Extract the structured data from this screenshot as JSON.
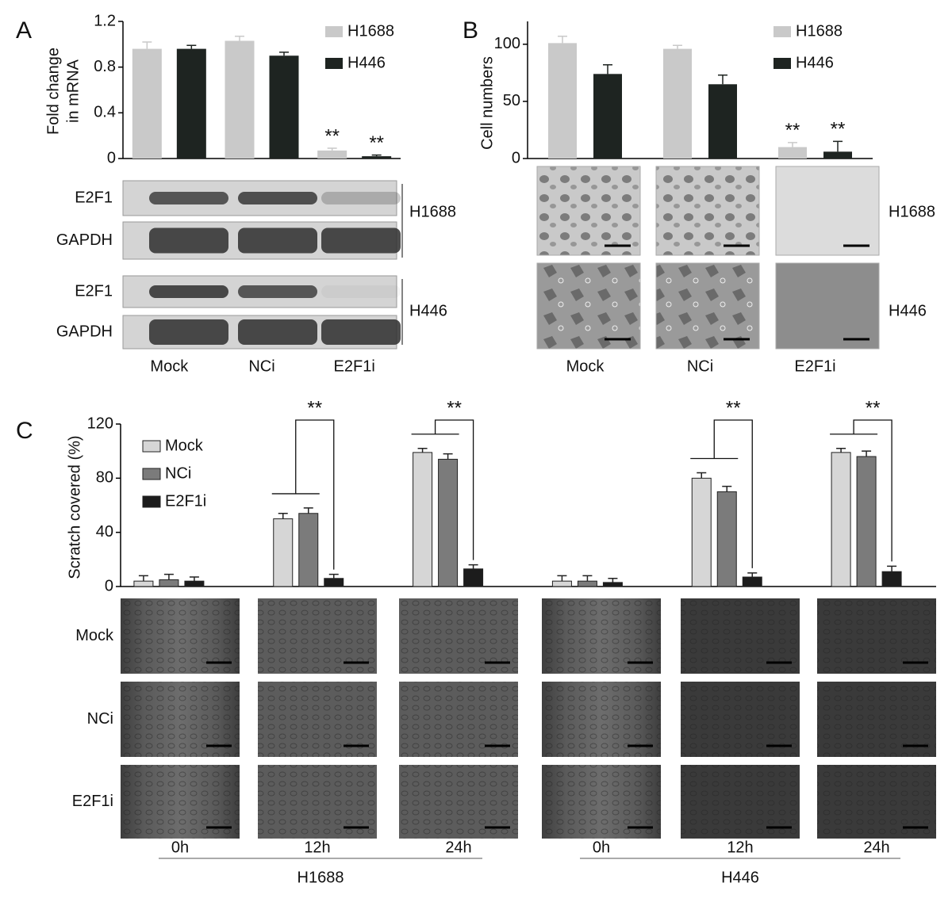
{
  "chart_data": [
    {
      "type": "bar",
      "panel": "A",
      "ylabel": [
        "Fold change",
        "in mRNA"
      ],
      "categories": [
        "Mock",
        "NCi",
        "E2F1i"
      ],
      "series": [
        {
          "name": "H1688",
          "color": "#c9c9c9",
          "values": [
            0.96,
            1.03,
            0.07
          ],
          "errors": [
            0.06,
            0.04,
            0.02
          ],
          "significance": [
            null,
            null,
            "**"
          ]
        },
        {
          "name": "H446",
          "color": "#1e2421",
          "values": [
            0.96,
            0.9,
            0.02
          ],
          "errors": [
            0.03,
            0.03,
            0.01
          ],
          "significance": [
            null,
            null,
            "**"
          ]
        }
      ],
      "ylim": [
        0,
        1.2
      ],
      "yticks": [
        0,
        0.4,
        0.8,
        1.2
      ],
      "legend": "upper right"
    },
    {
      "type": "bar",
      "panel": "B",
      "ylabel": [
        "Cell numbers"
      ],
      "categories": [
        "Mock",
        "NCi",
        "E2F1i"
      ],
      "series": [
        {
          "name": "H1688",
          "color": "#c9c9c9",
          "values": [
            101,
            96,
            10
          ],
          "errors": [
            6,
            3,
            4
          ],
          "significance": [
            null,
            null,
            "**"
          ]
        },
        {
          "name": "H446",
          "color": "#1e2421",
          "values": [
            74,
            65,
            6
          ],
          "errors": [
            8,
            8,
            9
          ],
          "significance": [
            null,
            null,
            "**"
          ]
        }
      ],
      "ylim": [
        0,
        120
      ],
      "yticks": [
        0,
        50,
        100
      ],
      "legend": "upper right"
    },
    {
      "type": "bar",
      "panel": "C",
      "ylabel": [
        "Scratch covered (%)"
      ],
      "categories": [
        "0h",
        "12h",
        "24h",
        "0h",
        "12h",
        "24h"
      ],
      "group_labels": [
        "H1688",
        "H446"
      ],
      "series": [
        {
          "name": "Mock",
          "color": "#d6d6d6",
          "values": [
            4,
            50,
            99,
            4,
            80,
            99
          ],
          "errors": [
            4,
            4,
            3,
            4,
            4,
            3
          ]
        },
        {
          "name": "NCi",
          "color": "#7b7b7b",
          "values": [
            5,
            54,
            94,
            4,
            70,
            96
          ],
          "errors": [
            4,
            4,
            4,
            4,
            4,
            4
          ]
        },
        {
          "name": "E2F1i",
          "color": "#1c1c1c",
          "values": [
            4,
            6,
            13,
            3,
            7,
            11
          ],
          "errors": [
            3,
            3,
            3,
            3,
            3,
            4
          ],
          "significance": [
            null,
            "**",
            "**",
            null,
            "**",
            "**"
          ]
        }
      ],
      "ylim": [
        0,
        120
      ],
      "yticks": [
        0,
        40,
        80,
        120
      ],
      "legend": "upper left"
    }
  ],
  "figure": {
    "blot_rows": [
      "E2F1",
      "GAPDH",
      "E2F1",
      "GAPDH"
    ],
    "blot_lines": [
      "H1688",
      "H446"
    ],
    "image_rows_B": [
      "H1688",
      "H446"
    ],
    "image_rows_C": [
      "Mock",
      "NCi",
      "E2F1i"
    ]
  }
}
